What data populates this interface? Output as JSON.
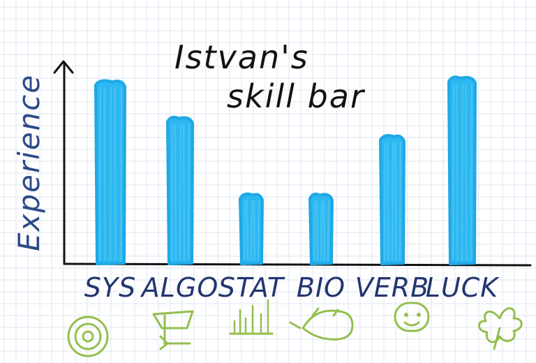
{
  "chart_data": {
    "type": "bar",
    "title_lines": [
      "Istvan's",
      "skill bar"
    ],
    "xlabel": "",
    "ylabel": "Experience",
    "categories": [
      "SYS",
      "ALGO",
      "STAT",
      "BIO",
      "VERB",
      "LUCK"
    ],
    "values": [
      100,
      80,
      38,
      38,
      70,
      102
    ],
    "ylim": [
      0,
      110
    ],
    "grid": true,
    "legend": "none",
    "color": "#2cb7f0",
    "icons": [
      "target-icon",
      "code-icon",
      "bars-icon",
      "mouse-icon",
      "smiley-icon",
      "clover-icon"
    ]
  }
}
